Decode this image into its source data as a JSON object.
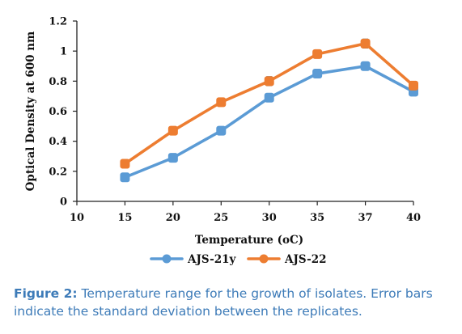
{
  "chart_data": {
    "type": "line",
    "categories": [
      "10",
      "15",
      "20",
      "25",
      "30",
      "35",
      "37",
      "40"
    ],
    "series": [
      {
        "name": "AJS-21y",
        "color": "#5b9bd5",
        "values": [
          null,
          0.16,
          0.29,
          0.47,
          0.69,
          0.85,
          0.9,
          0.73
        ],
        "errors": [
          null,
          0.015,
          0.015,
          0.02,
          0.02,
          0.015,
          0.015,
          0.015
        ]
      },
      {
        "name": "AJS-22",
        "color": "#ed7d31",
        "values": [
          null,
          0.25,
          0.47,
          0.66,
          0.8,
          0.98,
          1.05,
          0.77
        ],
        "errors": [
          null,
          0.02,
          0.02,
          0.02,
          0.03,
          0.015,
          0.03,
          0.02
        ]
      }
    ],
    "yticks": [
      "0",
      "0.2",
      "0.4",
      "0.6",
      "0.8",
      "1",
      "1.2"
    ],
    "ylim": [
      0,
      1.2
    ],
    "xlabel": "Temperature (oC)",
    "ylabel": "Optical Density at 600 nm",
    "grid": false,
    "legend_position": "bottom"
  },
  "caption": {
    "label": "Figure 2:",
    "text": " Temperature range for the growth of isolates. Error bars indicate the standard deviation between the replicates."
  }
}
